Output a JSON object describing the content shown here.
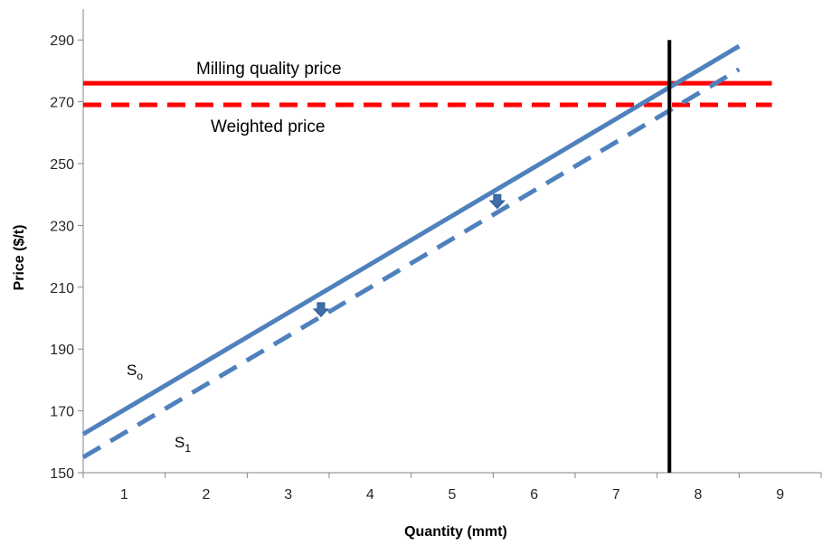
{
  "chart_data": {
    "type": "line",
    "title": "",
    "xlabel": "Quantity (mmt)",
    "ylabel": "Price ($/t)",
    "xlim": [
      0.5,
      9.5
    ],
    "ylim": [
      150,
      300
    ],
    "x_ticks": [
      "1",
      "2",
      "3",
      "4",
      "5",
      "6",
      "7",
      "8",
      "9"
    ],
    "y_ticks": [
      "150",
      "170",
      "190",
      "210",
      "230",
      "250",
      "270",
      "290"
    ],
    "grid": false,
    "legend": "none",
    "series": [
      {
        "name": "Milling quality price",
        "style": "solid",
        "color": "#ff0000",
        "points": [
          [
            0.5,
            276
          ],
          [
            8.9,
            276
          ]
        ]
      },
      {
        "name": "Weighted price",
        "style": "dashed",
        "color": "#ff0000",
        "points": [
          [
            0.5,
            269
          ],
          [
            8.9,
            269
          ]
        ]
      },
      {
        "name": "S",
        "subscript": "o",
        "style": "solid",
        "color": "#4f81bd",
        "points": [
          [
            0.5,
            162.5
          ],
          [
            8.5,
            288
          ]
        ]
      },
      {
        "name": "S",
        "subscript": "1",
        "style": "dashed",
        "color": "#4f81bd",
        "points": [
          [
            0.5,
            155
          ],
          [
            8.5,
            280.5
          ]
        ]
      },
      {
        "name": "",
        "style": "solid",
        "color": "#000000",
        "points": [
          [
            7.65,
            150
          ],
          [
            7.65,
            290
          ]
        ]
      }
    ],
    "arrows": [
      {
        "x": 3.4,
        "y_from": 205,
        "y_to": 200.5,
        "color": "#4f81bd"
      },
      {
        "x": 5.55,
        "y_from": 240,
        "y_to": 235.5,
        "color": "#4f81bd"
      }
    ]
  }
}
